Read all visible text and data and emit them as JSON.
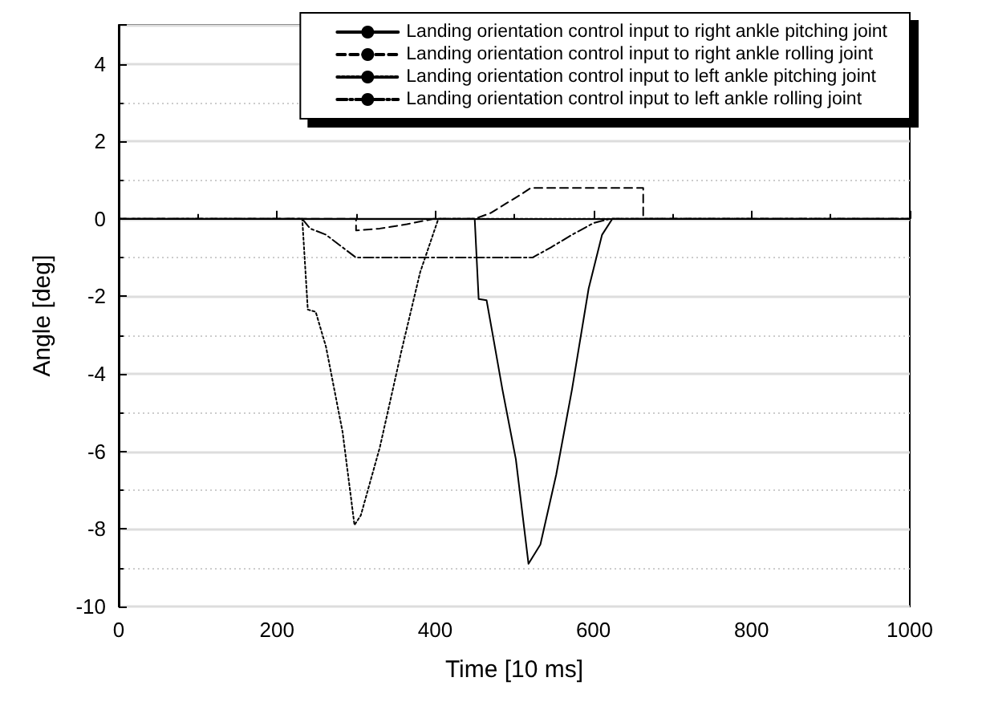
{
  "chart_data": {
    "type": "line",
    "xlabel": "Time [10 ms]",
    "ylabel": "Angle [deg]",
    "xlim": [
      0,
      1000
    ],
    "xticks": [
      0,
      200,
      400,
      600,
      800,
      1000
    ],
    "ylim": [
      -10,
      5
    ],
    "yticks": [
      -10,
      -8,
      -6,
      -4,
      -2,
      0,
      2,
      4
    ],
    "grid": "y",
    "legend": "top right",
    "marker": "none",
    "series": [
      {
        "name": "Landing orientation control input to right ankle pitching joint",
        "color": "#000000",
        "line_style": "solid",
        "x": [
          0,
          450,
          455,
          465,
          472,
          485,
          502,
          518,
          533,
          553,
          573,
          594,
          611,
          624,
          1000
        ],
        "values": [
          0,
          0,
          -2.07,
          -2.1,
          -2.9,
          -4.4,
          -6.2,
          -8.9,
          -8.4,
          -6.6,
          -4.4,
          -1.8,
          -0.41,
          0,
          0
        ]
      },
      {
        "name": "Landing orientation control input to right ankle rolling joint",
        "color": "#000000",
        "line_style": "dashed",
        "x": [
          0,
          300,
          300,
          330,
          364,
          398,
          450,
          470,
          490,
          510,
          521,
          663,
          663,
          1000
        ],
        "values": [
          0,
          0,
          -0.3,
          -0.25,
          -0.14,
          0,
          0,
          0.15,
          0.4,
          0.65,
          0.8,
          0.8,
          0,
          0
        ]
      },
      {
        "name": "Landing orientation control input to left ankle pitching joint",
        "color": "#000000",
        "line_style": "dotted",
        "x": [
          0,
          232,
          239,
          249,
          262,
          283,
          298,
          306,
          330,
          357,
          381,
          404,
          1000
        ],
        "values": [
          0,
          0,
          -2.34,
          -2.4,
          -3.3,
          -5.5,
          -7.9,
          -7.65,
          -5.9,
          -3.44,
          -1.38,
          0,
          0
        ]
      },
      {
        "name": "Landing orientation control input to left ankle rolling joint",
        "color": "#000000",
        "line_style": "dashdot",
        "x": [
          0,
          232,
          242,
          262,
          300,
          523,
          546,
          573,
          600,
          621,
          1000
        ],
        "values": [
          0,
          0,
          -0.25,
          -0.41,
          -1.0,
          -1.0,
          -0.74,
          -0.41,
          -0.11,
          0,
          0
        ]
      }
    ]
  }
}
